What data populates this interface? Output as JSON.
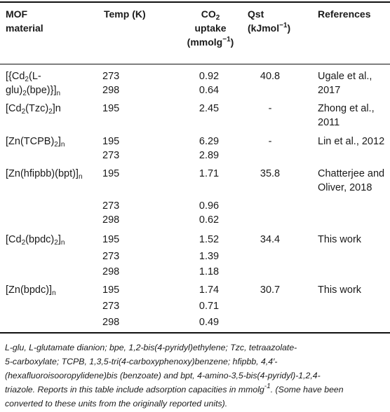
{
  "headers": {
    "material_l1": "MOF",
    "material_l2": "material",
    "temp": "Temp (K)",
    "co2_l1a": "CO",
    "co2_l1sub": "2",
    "co2_l2": "uptake",
    "co2_l3": "(mmolg",
    "co2_l3sup": "−1",
    "co2_l3end": ")",
    "qst_l1": "Qst",
    "qst_l2": "(kJmol",
    "qst_l2sup": "−1",
    "qst_l2end": ")",
    "references": "References"
  },
  "rows": [
    {
      "mat_l1a": "[{Cd",
      "mat_l1sub": "2",
      "mat_l1b": "(L-",
      "mat_l2a": "glu)",
      "mat_l2sub": "2",
      "mat_l2b": "(bpe)}]",
      "mat_l2sub2": "n",
      "temps": [
        "273",
        "298"
      ],
      "co2": [
        "0.92",
        "0.64"
      ],
      "qst": "40.8",
      "ref_l1": "Ugale et al.,",
      "ref_l2": "2017"
    },
    {
      "mat_a": "[Cd",
      "mat_sub": "2",
      "mat_b": "(Tzc)",
      "mat_sub2": "2",
      "mat_c": "]n",
      "temps": [
        "195"
      ],
      "co2": [
        "2.45"
      ],
      "qst": "-",
      "ref_l1": "Zhong et al.,",
      "ref_l2": "2011"
    },
    {
      "mat_a": "[Zn(TCPB)",
      "mat_sub": "2",
      "mat_b": "]",
      "mat_sub2": "n",
      "temps": [
        "195",
        "273"
      ],
      "co2": [
        "6.29",
        "2.89"
      ],
      "qst": "-",
      "ref_l1": "Lin et al., 2012"
    },
    {
      "mat_a": "[Zn(hfipbb)(bpt)]",
      "mat_sub": "n",
      "temps": [
        "195",
        "273",
        "298"
      ],
      "co2": [
        "1.71",
        "0.96",
        "0.62"
      ],
      "qst": "35.8",
      "ref_l1": "Chatterjee and",
      "ref_l2": "Oliver, 2018"
    },
    {
      "mat_a": "[Cd",
      "mat_sub": "2",
      "mat_b": "(bpdc)",
      "mat_sub2": "2",
      "mat_c": "]",
      "mat_sub3": "n",
      "temps": [
        "195",
        "273",
        "298"
      ],
      "co2": [
        "1.52",
        "1.39",
        "1.18"
      ],
      "qst": "34.4",
      "ref_l1": "This work"
    },
    {
      "mat_a": "[Zn(bpdc)]",
      "mat_sub": "n",
      "temps": [
        "195",
        "273",
        "298"
      ],
      "co2": [
        "1.74",
        "0.71",
        "0.49"
      ],
      "qst": "30.7",
      "ref_l1": "This work"
    }
  ],
  "footnote": {
    "l1": "L-glu, L-glutamate dianion; bpe, 1,2-bis(4-pyridyl)ethylene; Tzc, tetraazolate-",
    "l2": "5-carboxylate; TCPB, 1,3,5-tri(4-carboxyphenoxy)benzene; hfipbb, 4,4′-",
    "l3": "(hexafluoroisooropylidene)bis (benzoate) and bpt, 4-amino-3,5-bis(4-pyridyl)-1,2,4-",
    "l4a": "triazole. Reports in this table include adsorption capacities in mmolg",
    "l4sup": "-1",
    "l4b": ". (Some have been",
    "l5": "converted to these units from the originally reported units)."
  }
}
